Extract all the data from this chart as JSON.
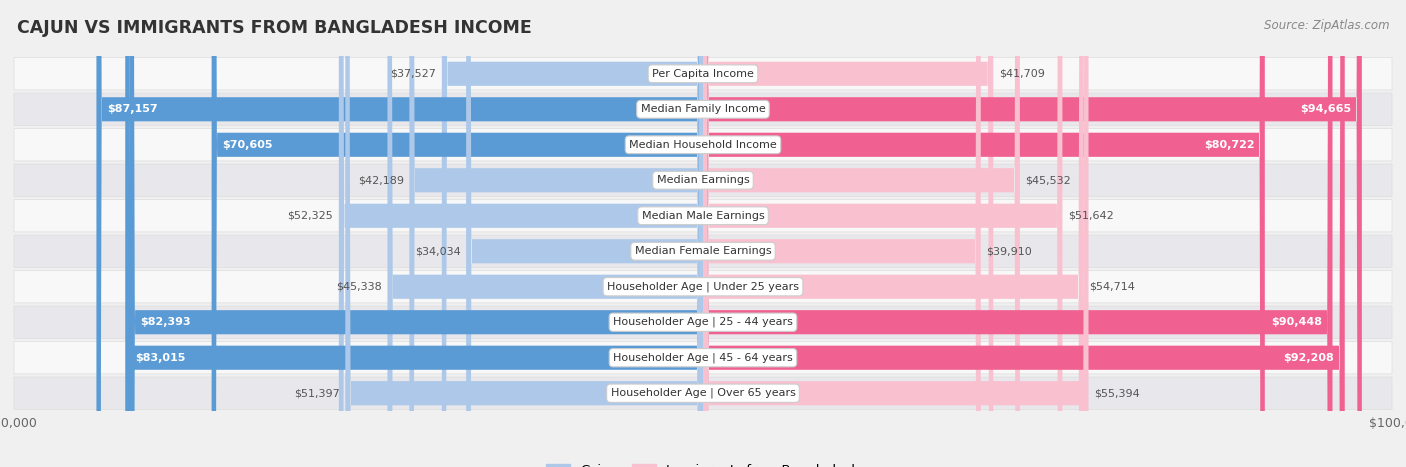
{
  "title": "CAJUN VS IMMIGRANTS FROM BANGLADESH INCOME",
  "source": "Source: ZipAtlas.com",
  "categories": [
    "Per Capita Income",
    "Median Family Income",
    "Median Household Income",
    "Median Earnings",
    "Median Male Earnings",
    "Median Female Earnings",
    "Householder Age | Under 25 years",
    "Householder Age | 25 - 44 years",
    "Householder Age | 45 - 64 years",
    "Householder Age | Over 65 years"
  ],
  "cajun_values": [
    37527,
    87157,
    70605,
    42189,
    52325,
    34034,
    45338,
    82393,
    83015,
    51397
  ],
  "bangladesh_values": [
    41709,
    94665,
    80722,
    45532,
    51642,
    39910,
    54714,
    90448,
    92208,
    55394
  ],
  "cajun_labels": [
    "$37,527",
    "$87,157",
    "$70,605",
    "$42,189",
    "$52,325",
    "$34,034",
    "$45,338",
    "$82,393",
    "$83,015",
    "$51,397"
  ],
  "bangladesh_labels": [
    "$41,709",
    "$94,665",
    "$80,722",
    "$45,532",
    "$51,642",
    "$39,910",
    "$54,714",
    "$90,448",
    "$92,208",
    "$55,394"
  ],
  "max_value": 100000,
  "cajun_light": "#adc8e8",
  "cajun_dark": "#5b9bd5",
  "bangladesh_light": "#f9c0d0",
  "bangladesh_dark": "#f06090",
  "background_color": "#f0f0f0",
  "row_even_color": "#f8f8f8",
  "row_odd_color": "#e8e8ec",
  "label_dark_color": "#444444",
  "label_white_color": "#ffffff",
  "legend_cajun": "Cajun",
  "legend_bangladesh": "Immigrants from Bangladesh",
  "dark_threshold": 70000
}
